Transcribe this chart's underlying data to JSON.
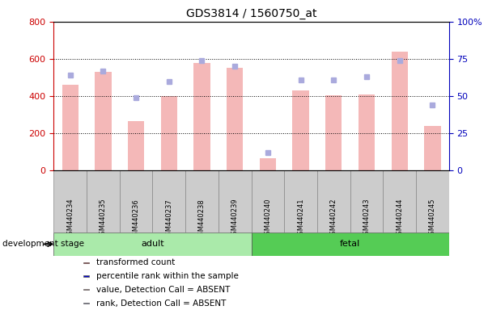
{
  "title": "GDS3814 / 1560750_at",
  "samples": [
    "GSM440234",
    "GSM440235",
    "GSM440236",
    "GSM440237",
    "GSM440238",
    "GSM440239",
    "GSM440240",
    "GSM440241",
    "GSM440242",
    "GSM440243",
    "GSM440244",
    "GSM440245"
  ],
  "bar_values": [
    460,
    530,
    265,
    400,
    580,
    550,
    65,
    430,
    405,
    410,
    640,
    240
  ],
  "rank_values": [
    64,
    67,
    49,
    60,
    74,
    70,
    12,
    61,
    61,
    63,
    74,
    44
  ],
  "ylim_left": [
    0,
    800
  ],
  "ylim_right": [
    0,
    100
  ],
  "yticks_left": [
    0,
    200,
    400,
    600,
    800
  ],
  "yticks_right": [
    0,
    25,
    50,
    75,
    100
  ],
  "bar_color_absent": "#f4b8b8",
  "rank_color_absent": "#aaaadd",
  "adult_color": "#aaeaaa",
  "fetal_color": "#55cc55",
  "legend_items": [
    {
      "label": "transformed count",
      "color": "#cc0000"
    },
    {
      "label": "percentile rank within the sample",
      "color": "#0000cc"
    },
    {
      "label": "value, Detection Call = ABSENT",
      "color": "#f4b8b8"
    },
    {
      "label": "rank, Detection Call = ABSENT",
      "color": "#aaaadd"
    }
  ],
  "left_tick_color": "#cc0000",
  "right_tick_color": "#0000bb",
  "group_spans": [
    {
      "label": "adult",
      "start": 0,
      "end": 5,
      "color": "#aaeaaa"
    },
    {
      "label": "fetal",
      "start": 6,
      "end": 11,
      "color": "#55cc55"
    }
  ]
}
